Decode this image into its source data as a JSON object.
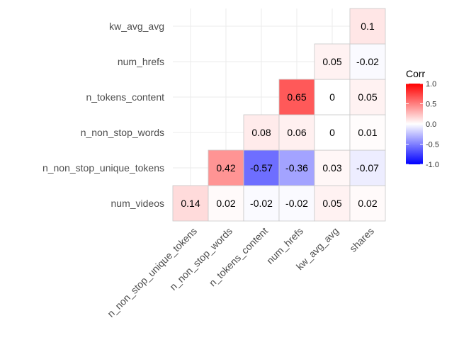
{
  "chart_data": {
    "type": "heatmap",
    "title": "",
    "xlabel": "",
    "ylabel": "",
    "x_categories": [
      "n_non_stop_unique_tokens",
      "n_non_stop_words",
      "n_tokens_content",
      "num_hrefs",
      "kw_avg_avg",
      "shares"
    ],
    "y_categories": [
      "num_videos",
      "n_non_stop_unique_tokens",
      "n_non_stop_words",
      "n_tokens_content",
      "num_hrefs",
      "kw_avg_avg"
    ],
    "cells": [
      {
        "x": "n_non_stop_unique_tokens",
        "y": "num_videos",
        "value": 0.14,
        "label": "0.14"
      },
      {
        "x": "n_non_stop_words",
        "y": "num_videos",
        "value": 0.02,
        "label": "0.02"
      },
      {
        "x": "n_tokens_content",
        "y": "num_videos",
        "value": -0.02,
        "label": "-0.02"
      },
      {
        "x": "num_hrefs",
        "y": "num_videos",
        "value": -0.02,
        "label": "-0.02"
      },
      {
        "x": "kw_avg_avg",
        "y": "num_videos",
        "value": 0.05,
        "label": "0.05"
      },
      {
        "x": "shares",
        "y": "num_videos",
        "value": 0.02,
        "label": "0.02"
      },
      {
        "x": "n_non_stop_words",
        "y": "n_non_stop_unique_tokens",
        "value": 0.42,
        "label": "0.42"
      },
      {
        "x": "n_tokens_content",
        "y": "n_non_stop_unique_tokens",
        "value": -0.57,
        "label": "-0.57"
      },
      {
        "x": "num_hrefs",
        "y": "n_non_stop_unique_tokens",
        "value": -0.36,
        "label": "-0.36"
      },
      {
        "x": "kw_avg_avg",
        "y": "n_non_stop_unique_tokens",
        "value": 0.03,
        "label": "0.03"
      },
      {
        "x": "shares",
        "y": "n_non_stop_unique_tokens",
        "value": -0.07,
        "label": "-0.07"
      },
      {
        "x": "n_tokens_content",
        "y": "n_non_stop_words",
        "value": 0.08,
        "label": "0.08"
      },
      {
        "x": "num_hrefs",
        "y": "n_non_stop_words",
        "value": 0.06,
        "label": "0.06"
      },
      {
        "x": "kw_avg_avg",
        "y": "n_non_stop_words",
        "value": 0,
        "label": "0"
      },
      {
        "x": "shares",
        "y": "n_non_stop_words",
        "value": 0.01,
        "label": "0.01"
      },
      {
        "x": "num_hrefs",
        "y": "n_tokens_content",
        "value": 0.65,
        "label": "0.65"
      },
      {
        "x": "kw_avg_avg",
        "y": "n_tokens_content",
        "value": 0,
        "label": "0"
      },
      {
        "x": "shares",
        "y": "n_tokens_content",
        "value": 0.05,
        "label": "0.05"
      },
      {
        "x": "kw_avg_avg",
        "y": "num_hrefs",
        "value": 0.05,
        "label": "0.05"
      },
      {
        "x": "shares",
        "y": "num_hrefs",
        "value": -0.02,
        "label": "-0.02"
      },
      {
        "x": "shares",
        "y": "kw_avg_avg",
        "value": 0.1,
        "label": "0.1"
      }
    ],
    "color_scale": {
      "low": "#0000FF",
      "mid": "#FFFFFF",
      "high": "#FF0000",
      "limits": [
        -1,
        1
      ]
    },
    "legend": {
      "title": "Corr",
      "ticks": [
        "1.0",
        "0.5",
        "0.0",
        "-0.5",
        "-1.0"
      ],
      "tick_values": [
        1,
        0.5,
        0,
        -0.5,
        -1
      ],
      "position": "right"
    },
    "grid": true
  }
}
